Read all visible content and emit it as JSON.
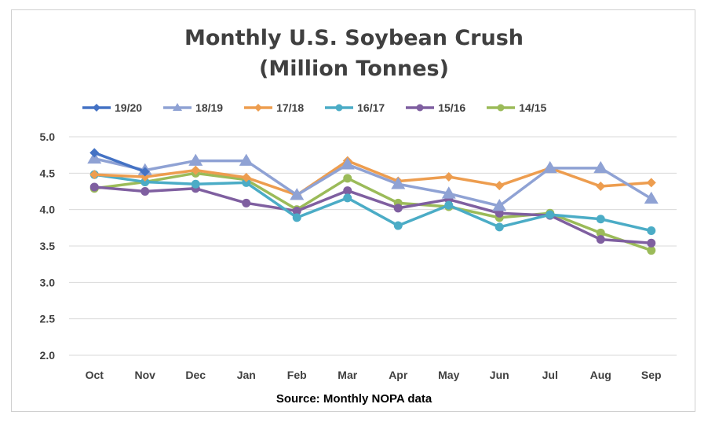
{
  "chart_data": {
    "type": "line",
    "title_line1": "Monthly U.S. Soybean Crush",
    "title_line2": "(Million Tonnes)",
    "source": "Source: Monthly NOPA data",
    "categories": [
      "Oct",
      "Nov",
      "Dec",
      "Jan",
      "Feb",
      "Mar",
      "Apr",
      "May",
      "Jun",
      "Jul",
      "Aug",
      "Sep"
    ],
    "ylim": [
      2.0,
      5.0
    ],
    "yticks": [
      "5.0",
      "4.5",
      "4.0",
      "3.5",
      "3.0",
      "2.5",
      "2.0"
    ],
    "grid": true,
    "legend_position": "top",
    "series": [
      {
        "name": "19/20",
        "color": "#4472c4",
        "marker": "diamond",
        "values": [
          4.78,
          4.52,
          null,
          null,
          null,
          null,
          null,
          null,
          null,
          null,
          null,
          null
        ]
      },
      {
        "name": "18/19",
        "color": "#8fa2d4",
        "marker": "triangle",
        "values": [
          4.7,
          4.54,
          4.67,
          4.67,
          4.2,
          4.62,
          4.35,
          4.22,
          4.05,
          4.57,
          4.57,
          4.15
        ]
      },
      {
        "name": "17/18",
        "color": "#ed9d4f",
        "marker": "diamond",
        "values": [
          4.48,
          4.45,
          4.54,
          4.44,
          4.2,
          4.67,
          4.39,
          4.45,
          4.33,
          4.57,
          4.32,
          4.37
        ]
      },
      {
        "name": "16/17",
        "color": "#4bacc6",
        "marker": "circle",
        "values": [
          4.48,
          4.38,
          4.35,
          4.37,
          3.89,
          4.16,
          3.78,
          4.06,
          3.76,
          3.93,
          3.87,
          3.71
        ]
      },
      {
        "name": "15/16",
        "color": "#7f5fa0",
        "marker": "circle",
        "values": [
          4.31,
          4.25,
          4.29,
          4.09,
          3.98,
          4.26,
          4.02,
          4.14,
          3.95,
          3.92,
          3.59,
          3.54
        ]
      },
      {
        "name": "14/15",
        "color": "#9bbb59",
        "marker": "circle",
        "values": [
          4.29,
          4.38,
          4.5,
          4.41,
          4.0,
          4.43,
          4.09,
          4.04,
          3.89,
          3.95,
          3.68,
          3.44
        ]
      }
    ]
  }
}
